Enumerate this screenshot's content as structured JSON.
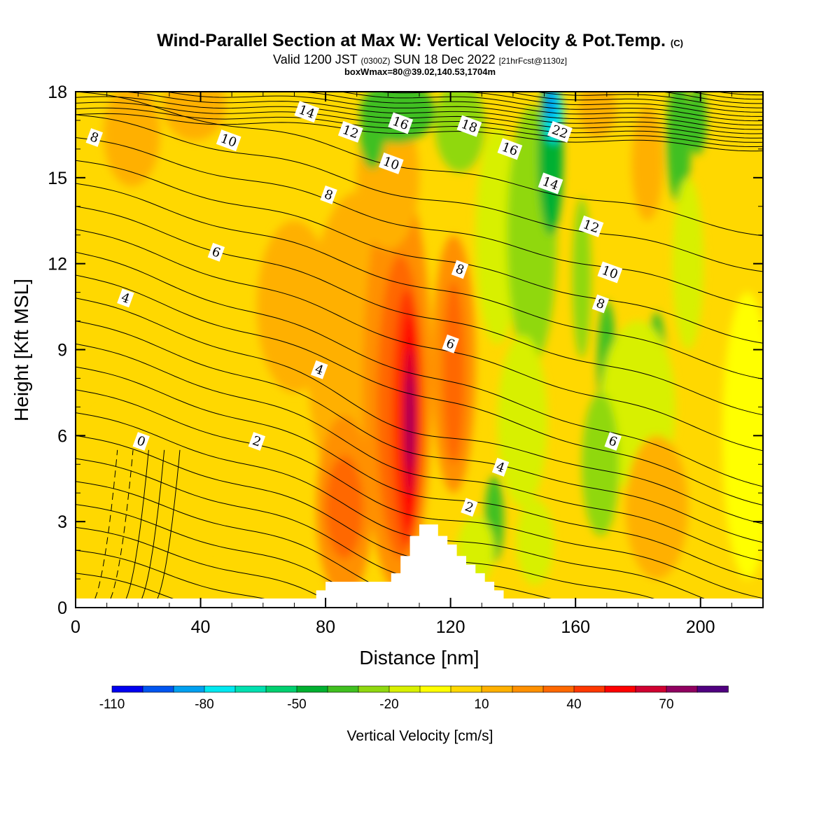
{
  "header": {
    "title": "Wind-Parallel Section at Max W: Vertical Velocity & Pot.Temp.",
    "copyright": "(C)",
    "valid_prefix": "Valid 1200 JST",
    "valid_utc": "(0300Z)",
    "valid_date": "SUN 18 Dec 2022",
    "valid_fcst": "[21hrFcst@1130z]",
    "boxinfo": "boxWmax=80@39.02,140.53,1704m"
  },
  "chart_data": {
    "type": "heatmap",
    "title": "Wind-Parallel Section at Max W: Vertical Velocity & Pot.Temp.",
    "xlabel": "Distance [nm]",
    "ylabel": "Height [Kft MSL]",
    "xlim": [
      0,
      220
    ],
    "ylim": [
      0,
      18
    ],
    "xticks": [
      0,
      40,
      80,
      120,
      160,
      200
    ],
    "yticks": [
      0,
      3,
      6,
      9,
      12,
      15,
      18
    ],
    "colorbar": {
      "title": "Vertical Velocity [cm/s]",
      "tick_labels": [
        "-110",
        "-80",
        "-50",
        "-20",
        "10",
        "40",
        "70"
      ],
      "tick_values": [
        -110,
        -80,
        -50,
        -20,
        10,
        40,
        70
      ],
      "colors": [
        "#0000f0",
        "#0055f0",
        "#00a0f0",
        "#00e8f0",
        "#00e0b0",
        "#00d070",
        "#00b030",
        "#40c020",
        "#90d810",
        "#d8f000",
        "#ffff00",
        "#ffd800",
        "#ffb000",
        "#ff9000",
        "#ff6800",
        "#ff3800",
        "#ff0000",
        "#d00030",
        "#900060",
        "#500080"
      ]
    },
    "wmax_cm_s": 80,
    "terrain_profile_kft": [
      [
        0,
        0
      ],
      [
        74,
        0
      ],
      [
        74,
        0.3
      ],
      [
        77,
        0.3
      ],
      [
        77,
        0.6
      ],
      [
        80,
        0.6
      ],
      [
        80,
        0.9
      ],
      [
        101,
        0.9
      ],
      [
        101,
        1.2
      ],
      [
        104,
        1.2
      ],
      [
        104,
        1.8
      ],
      [
        107,
        1.8
      ],
      [
        107,
        2.5
      ],
      [
        110,
        2.5
      ],
      [
        110,
        2.9
      ],
      [
        116,
        2.9
      ],
      [
        116,
        2.5
      ],
      [
        119,
        2.5
      ],
      [
        119,
        2.2
      ],
      [
        122,
        2.2
      ],
      [
        122,
        1.8
      ],
      [
        125,
        1.8
      ],
      [
        125,
        1.5
      ],
      [
        128,
        1.5
      ],
      [
        128,
        1.2
      ],
      [
        131,
        1.2
      ],
      [
        131,
        0.9
      ],
      [
        134,
        0.9
      ],
      [
        134,
        0.6
      ],
      [
        137,
        0.6
      ],
      [
        137,
        0.3
      ],
      [
        140,
        0.3
      ],
      [
        140,
        0
      ],
      [
        220,
        0
      ]
    ],
    "potential_temperature_contours": {
      "units": "C",
      "labels": [
        {
          "value": "8",
          "x": 6,
          "y": 16.4
        },
        {
          "value": "10",
          "x": 49,
          "y": 16.3
        },
        {
          "value": "14",
          "x": 74,
          "y": 17.3
        },
        {
          "value": "12",
          "x": 88,
          "y": 16.6
        },
        {
          "value": "16",
          "x": 104,
          "y": 16.9
        },
        {
          "value": "18",
          "x": 126,
          "y": 16.8
        },
        {
          "value": "16",
          "x": 139,
          "y": 16.0
        },
        {
          "value": "22",
          "x": 155,
          "y": 16.6
        },
        {
          "value": "10",
          "x": 101,
          "y": 15.5
        },
        {
          "value": "8",
          "x": 81,
          "y": 14.4
        },
        {
          "value": "14",
          "x": 152,
          "y": 14.8
        },
        {
          "value": "12",
          "x": 165,
          "y": 13.3
        },
        {
          "value": "6",
          "x": 45,
          "y": 12.4
        },
        {
          "value": "8",
          "x": 123,
          "y": 11.8
        },
        {
          "value": "10",
          "x": 171,
          "y": 11.7
        },
        {
          "value": "4",
          "x": 16,
          "y": 10.8
        },
        {
          "value": "8",
          "x": 168,
          "y": 10.6
        },
        {
          "value": "6",
          "x": 120,
          "y": 9.2
        },
        {
          "value": "4",
          "x": 78,
          "y": 8.3
        },
        {
          "value": "0",
          "x": 21,
          "y": 5.8
        },
        {
          "value": "2",
          "x": 58,
          "y": 5.8
        },
        {
          "value": "6",
          "x": 172,
          "y": 5.8
        },
        {
          "value": "4",
          "x": 136,
          "y": 4.9
        },
        {
          "value": "2",
          "x": 126,
          "y": 3.5
        }
      ]
    },
    "vertical_velocity_features": [
      {
        "desc": "updraft core",
        "x": 107,
        "y": 6.5,
        "value": 80
      },
      {
        "desc": "updraft",
        "x": 120,
        "y": 8.0,
        "value": 40
      },
      {
        "desc": "updraft",
        "x": 85,
        "y": 4.5,
        "value": 40
      },
      {
        "desc": "downdraft",
        "x": 152,
        "y": 17.0,
        "value": -80
      },
      {
        "desc": "downdraft",
        "x": 100,
        "y": 17.5,
        "value": -40
      },
      {
        "desc": "downdraft",
        "x": 193,
        "y": 16.5,
        "value": -40
      },
      {
        "desc": "downdraft",
        "x": 169,
        "y": 8.5,
        "value": -30
      },
      {
        "desc": "downdraft",
        "x": 186,
        "y": 8.2,
        "value": -30
      },
      {
        "desc": "downdraft",
        "x": 134,
        "y": 3.0,
        "value": -30
      }
    ]
  }
}
